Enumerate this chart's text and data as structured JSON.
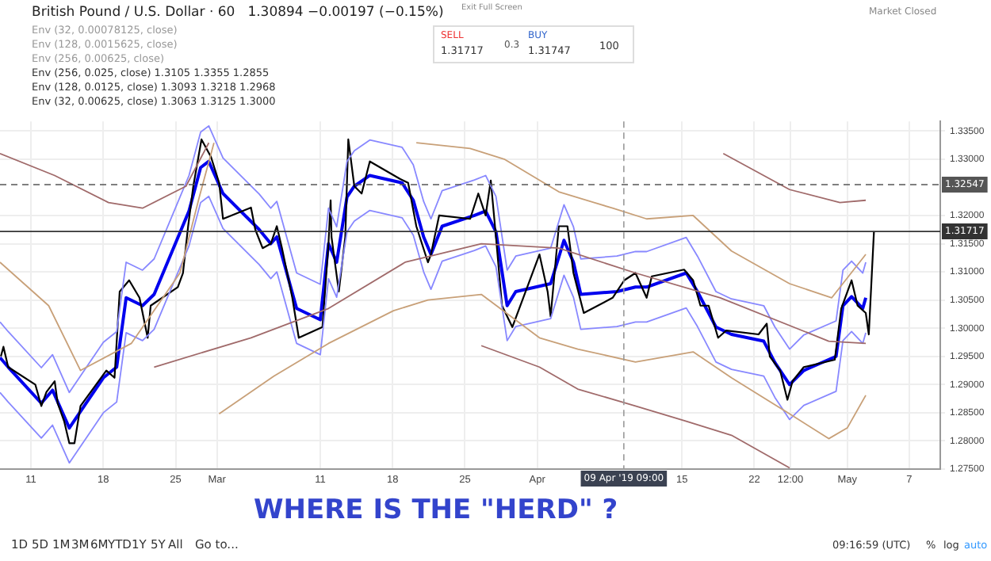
{
  "chart_data": {
    "type": "line",
    "title": "British Pound / U.S. Dollar · 60",
    "subtitle": "1.30894 −0.00197 (−0.15%)",
    "xlim": [
      "2019-02-08T00:00",
      "2019-05-10T00:00"
    ],
    "ylim": [
      1.275,
      1.3367
    ],
    "xticks": [
      {
        "value": "2019-02-11",
        "label": "11"
      },
      {
        "value": "2019-02-18",
        "label": "18"
      },
      {
        "value": "2019-02-25",
        "label": "25"
      },
      {
        "value": "2019-03-01",
        "label": "Mar"
      },
      {
        "value": "2019-03-11",
        "label": "11"
      },
      {
        "value": "2019-03-18",
        "label": "18"
      },
      {
        "value": "2019-03-25",
        "label": "25"
      },
      {
        "value": "2019-04-01",
        "label": "Apr"
      },
      {
        "value": "2019-04-15",
        "label": "15"
      },
      {
        "value": "2019-04-22",
        "label": "22"
      },
      {
        "value": "2019-04-25T12:00",
        "label": "12:00"
      },
      {
        "value": "2019-05-01",
        "label": "May"
      },
      {
        "value": "2019-05-07",
        "label": "7"
      }
    ],
    "yticks": [
      {
        "value": 1.275,
        "label": "1.27500"
      },
      {
        "value": 1.28,
        "label": "1.28000"
      },
      {
        "value": 1.285,
        "label": "1.28500"
      },
      {
        "value": 1.29,
        "label": "1.29000"
      },
      {
        "value": 1.295,
        "label": "1.29500"
      },
      {
        "value": 1.3,
        "label": "1.30000"
      },
      {
        "value": 1.305,
        "label": "1.30500"
      },
      {
        "value": 1.31,
        "label": "1.31000"
      },
      {
        "value": 1.315,
        "label": "1.31500"
      },
      {
        "value": 1.32,
        "label": "1.32000"
      },
      {
        "value": 1.33,
        "label": "1.33000"
      },
      {
        "value": 1.335,
        "label": "1.33500"
      }
    ],
    "grid": true,
    "legend": false,
    "marker": "none",
    "ref_lines": [
      {
        "axis": "y",
        "value": 1.32547,
        "label": "1.32547",
        "color": "#555555",
        "line_style": "dashed"
      },
      {
        "axis": "y",
        "value": 1.31717,
        "label": "1.31717",
        "color": "#333333",
        "line_style": "solid"
      },
      {
        "axis": "x",
        "value": "2019-04-09T09:00",
        "label": "09 Apr '19 09:00",
        "color": "#999999",
        "line_style": "dashed"
      }
    ],
    "series": [
      {
        "color": "#c8a078",
        "x": [
          "2019-02-08T00:00",
          "2019-02-12T17:00",
          "2019-02-15T19:00",
          "2019-02-20T17:00",
          "2019-02-25T10:00",
          "2019-02-27T07:00",
          "2019-02-28T17:00",
          "2019-03-07T00:00",
          "2019-03-20T07:00",
          "2019-03-25T12:00",
          "2019-03-28T19:00",
          "2019-04-03T02:00",
          "2019-04-08T07:00",
          "2019-04-11T14:00",
          "2019-04-16T02:00",
          "2019-04-19T19:00",
          "2019-04-25T10:00",
          "2019-04-29T12:00",
          "2019-05-02T19:00"
        ],
        "values": [
          1.3117,
          1.304,
          1.2925,
          1.2973,
          1.3098,
          1.3233,
          1.3329,
          null,
          1.3329,
          1.3319,
          1.33,
          1.3242,
          1.3213,
          1.3194,
          1.32,
          1.3137,
          1.3079,
          1.3054,
          1.3131
        ]
      },
      {
        "color": "#c8a078",
        "x": [
          "2019-03-01T05:00",
          "2019-03-06T12:00",
          "2019-03-11T19:00",
          "2019-03-18T02:00",
          "2019-03-21T10:00",
          "2019-03-26T14:00",
          "2019-04-01T05:00",
          "2019-04-04T22:00",
          "2019-04-10T12:00",
          "2019-04-16T02:00",
          "2019-04-19T19:00",
          "2019-04-25T10:00",
          "2019-04-29T05:00",
          "2019-05-01T00:00",
          "2019-05-02T19:00"
        ],
        "values": [
          1.2848,
          1.2915,
          1.2973,
          1.3031,
          1.305,
          1.306,
          1.2983,
          1.2963,
          1.294,
          1.2958,
          1.2912,
          1.2848,
          1.2804,
          1.2823,
          1.2881
        ]
      },
      {
        "color": "#a06a6a",
        "x": [
          "2019-02-08T00:00",
          "2019-02-13T07:00",
          "2019-02-18T12:00",
          "2019-02-21T19:00",
          "2019-02-26T00:00",
          "2019-02-28T05:00",
          "2019-03-11T00:00",
          "2019-04-19T00:00",
          "2019-04-25T10:00",
          "2019-04-30T07:00",
          "2019-05-02T19:00"
        ],
        "values": [
          1.331,
          1.3271,
          1.3223,
          1.3213,
          1.3252,
          1.3329,
          null,
          1.331,
          1.3246,
          1.3223,
          1.3227
        ]
      },
      {
        "color": "#a06a6a",
        "x": [
          "2019-02-22T22:00",
          "2019-03-04T07:00",
          "2019-03-11T19:00",
          "2019-03-19T05:00",
          "2019-03-26T14:00",
          "2019-04-03T02:00",
          "2019-04-10T12:00",
          "2019-04-18T17:00",
          "2019-04-29T05:00",
          "2019-05-02T19:00"
        ],
        "values": [
          1.2931,
          1.2983,
          1.3035,
          1.3117,
          1.315,
          1.3142,
          1.3098,
          1.3054,
          1.2977,
          1.2973
        ]
      },
      {
        "color": "#a06a6a",
        "x": [
          "2019-03-26T14:00",
          "2019-04-01T05:00",
          "2019-04-04T22:00",
          "2019-04-10T12:00",
          "2019-04-15T10:00",
          "2019-04-19T19:00",
          "2019-04-25T10:00"
        ],
        "values": [
          1.2969,
          1.2931,
          1.2892,
          1.2862,
          1.2835,
          1.281,
          1.2752
        ]
      },
      {
        "color": "#8888ff",
        "x": [
          "2019-02-08T00:00",
          "2019-02-08T19:00",
          "2019-02-12T00:00",
          "2019-02-13T02:00",
          "2019-02-14T17:00",
          "2019-02-18T00:00",
          "2019-02-19T07:00",
          "2019-02-20T05:00",
          "2019-02-21T19:00",
          "2019-02-22T22:00",
          "2019-02-26T07:00",
          "2019-02-27T10:00",
          "2019-02-28T05:00",
          "2019-03-01T14:00",
          "2019-03-05T02:00",
          "2019-03-06T05:00",
          "2019-03-06T19:00",
          "2019-03-08T17:00",
          "2019-03-11T00:00",
          "2019-03-11T19:00",
          "2019-03-12T14:00",
          "2019-03-13T14:00",
          "2019-03-14T07:00",
          "2019-03-15T19:00",
          "2019-03-18T22:00",
          "2019-03-20T00:00",
          "2019-03-21T00:00",
          "2019-03-21T17:00",
          "2019-03-22T19:00",
          "2019-03-25T22:00",
          "2019-03-27T00:00",
          "2019-03-28T00:00",
          "2019-03-29T02:00",
          "2019-03-29T22:00",
          "2019-04-02T07:00",
          "2019-04-03T14:00",
          "2019-04-04T12:00",
          "2019-04-05T05:00",
          "2019-04-08T17:00",
          "2019-04-10T12:00",
          "2019-04-11T14:00",
          "2019-04-15T10:00",
          "2019-04-16T12:00",
          "2019-04-18T07:00",
          "2019-04-19T19:00",
          "2019-04-22T22:00",
          "2019-04-24T00:00",
          "2019-04-25T10:00",
          "2019-04-26T19:00",
          "2019-04-29T22:00",
          "2019-04-30T14:00",
          "2019-05-01T10:00",
          "2019-05-02T12:00",
          "2019-05-02T19:00"
        ],
        "values": [
          1.3011,
          1.2994,
          1.293,
          1.2953,
          1.2886,
          1.2975,
          1.2994,
          1.3117,
          1.3103,
          1.3123,
          1.3271,
          1.3348,
          1.3359,
          1.3302,
          1.3238,
          1.3213,
          1.3225,
          1.3098,
          1.3078,
          1.3213,
          1.318,
          1.3296,
          1.3315,
          1.3334,
          1.3321,
          1.329,
          1.3225,
          1.3194,
          1.3244,
          1.3263,
          1.3271,
          1.3234,
          1.3103,
          1.3128,
          1.3142,
          1.3219,
          1.318,
          1.3123,
          1.3128,
          1.3136,
          1.3136,
          1.3161,
          1.3128,
          1.3065,
          1.3052,
          1.304,
          1.3002,
          1.2963,
          1.2988,
          1.3013,
          1.3103,
          1.3119,
          1.3098,
          1.3117
        ]
      },
      {
        "color": "#8888ff",
        "x": [
          "2019-02-08T00:00",
          "2019-02-08T19:00",
          "2019-02-12T00:00",
          "2019-02-13T02:00",
          "2019-02-14T17:00",
          "2019-02-18T00:00",
          "2019-02-19T07:00",
          "2019-02-20T05:00",
          "2019-02-21T19:00",
          "2019-02-22T22:00",
          "2019-02-26T07:00",
          "2019-02-27T10:00",
          "2019-02-28T05:00",
          "2019-03-01T14:00",
          "2019-03-05T02:00",
          "2019-03-06T05:00",
          "2019-03-06T19:00",
          "2019-03-08T17:00",
          "2019-03-11T00:00",
          "2019-03-11T19:00",
          "2019-03-12T14:00",
          "2019-03-13T14:00",
          "2019-03-14T07:00",
          "2019-03-15T19:00",
          "2019-03-18T22:00",
          "2019-03-20T00:00",
          "2019-03-21T00:00",
          "2019-03-21T17:00",
          "2019-03-22T19:00",
          "2019-03-25T22:00",
          "2019-03-27T00:00",
          "2019-03-28T00:00",
          "2019-03-29T02:00",
          "2019-03-29T22:00",
          "2019-04-02T07:00",
          "2019-04-03T14:00",
          "2019-04-04T12:00",
          "2019-04-05T05:00",
          "2019-04-08T17:00",
          "2019-04-10T12:00",
          "2019-04-11T14:00",
          "2019-04-15T10:00",
          "2019-04-16T12:00",
          "2019-04-18T07:00",
          "2019-04-19T19:00",
          "2019-04-22T22:00",
          "2019-04-24T00:00",
          "2019-04-25T10:00",
          "2019-04-26T19:00",
          "2019-04-29T22:00",
          "2019-04-30T14:00",
          "2019-05-01T10:00",
          "2019-05-02T12:00",
          "2019-05-02T19:00"
        ],
        "values": [
          1.2886,
          1.2869,
          1.2805,
          1.2828,
          1.2761,
          1.285,
          1.2869,
          1.2992,
          1.2978,
          1.2998,
          1.3146,
          1.3223,
          1.3234,
          1.3177,
          1.3113,
          1.3088,
          1.31,
          1.2973,
          1.2953,
          1.3088,
          1.3055,
          1.3171,
          1.319,
          1.3209,
          1.3196,
          1.3165,
          1.31,
          1.3069,
          1.3119,
          1.3138,
          1.3146,
          1.3109,
          1.2978,
          1.3003,
          1.3017,
          1.3094,
          1.3055,
          1.2998,
          1.3003,
          1.3011,
          1.3011,
          1.3036,
          1.3003,
          1.294,
          1.2927,
          1.2915,
          1.2877,
          1.2838,
          1.2863,
          1.2888,
          1.2978,
          1.2994,
          1.2973,
          1.2992
        ]
      },
      {
        "color": "#000000",
        "x": [
          "2019-02-08T02:00",
          "2019-02-08T08:00",
          "2019-02-08T19:00",
          "2019-02-11T10:00",
          "2019-02-12T00:00",
          "2019-02-12T12:00",
          "2019-02-13T07:00",
          "2019-02-13T14:00",
          "2019-02-14T05:00",
          "2019-02-14T17:00",
          "2019-02-15T05:00",
          "2019-02-15T19:00",
          "2019-02-18T07:00",
          "2019-02-19T02:00",
          "2019-02-19T14:00",
          "2019-02-20T12:00",
          "2019-02-21T12:00",
          "2019-02-22T07:00",
          "2019-02-22T14:00",
          "2019-02-25T05:00",
          "2019-02-25T17:00",
          "2019-02-26T05:00",
          "2019-02-26T17:00",
          "2019-02-27T12:00",
          "2019-02-28T10:00",
          "2019-03-01T05:00",
          "2019-03-01T14:00",
          "2019-03-04T07:00",
          "2019-03-04T17:00",
          "2019-03-05T10:00",
          "2019-03-06T05:00",
          "2019-03-06T19:00",
          "2019-03-07T07:00",
          "2019-03-07T19:00",
          "2019-03-08T07:00",
          "2019-03-08T22:00",
          "2019-03-11T05:00",
          "2019-03-11T19:00",
          "2019-03-12T00:00",
          "2019-03-12T02:00",
          "2019-03-12T19:00",
          "2019-03-13T10:00",
          "2019-03-13T17:00",
          "2019-03-14T07:00",
          "2019-03-15T00:00",
          "2019-03-15T19:00",
          "2019-03-18T17:00",
          "2019-03-19T12:00",
          "2019-03-20T07:00",
          "2019-03-21T10:00",
          "2019-03-21T17:00",
          "2019-03-22T12:00",
          "2019-03-25T12:00",
          "2019-03-26T07:00",
          "2019-03-27T00:00",
          "2019-03-27T12:00",
          "2019-03-28T00:00",
          "2019-03-28T14:00",
          "2019-03-29T14:00",
          "2019-04-01T05:00",
          "2019-04-02T00:00",
          "2019-04-02T07:00",
          "2019-04-03T02:00",
          "2019-04-03T22:00",
          "2019-04-04T12:00",
          "2019-04-05T12:00",
          "2019-04-08T07:00",
          "2019-04-09T10:00",
          "2019-04-10T12:00",
          "2019-04-11T14:00",
          "2019-04-12T02:00",
          "2019-04-15T05:00",
          "2019-04-16T02:00",
          "2019-04-16T19:00",
          "2019-04-17T14:00",
          "2019-04-18T12:00",
          "2019-04-19T07:00",
          "2019-04-22T10:00",
          "2019-04-23T05:00",
          "2019-04-23T12:00",
          "2019-04-24T12:00",
          "2019-04-25T05:00",
          "2019-04-25T17:00",
          "2019-04-26T19:00",
          "2019-04-29T19:00",
          "2019-04-30T10:00",
          "2019-05-01T10:00",
          "2019-05-02T00:00",
          "2019-05-02T19:00",
          "2019-05-03T02:00",
          "2019-05-03T14:00"
        ],
        "values": [
          1.295,
          1.2967,
          1.2931,
          1.29,
          1.2862,
          1.2887,
          1.2906,
          1.2867,
          1.2835,
          1.2796,
          1.2796,
          1.2862,
          1.2925,
          1.2912,
          1.3065,
          1.3085,
          1.3054,
          1.2983,
          1.304,
          1.3073,
          1.3098,
          1.3181,
          1.3252,
          1.3335,
          1.3304,
          1.3258,
          1.3194,
          1.3214,
          1.3175,
          1.3142,
          1.315,
          1.3181,
          1.3142,
          1.3098,
          1.3054,
          1.2983,
          1.3002,
          1.315,
          1.3227,
          1.3162,
          1.3065,
          1.3162,
          1.3335,
          1.3252,
          1.3239,
          1.3296,
          1.3265,
          1.3258,
          1.3181,
          1.3117,
          1.3131,
          1.32,
          1.3194,
          1.3239,
          1.32,
          1.3262,
          1.3162,
          1.304,
          1.3002,
          1.3131,
          1.3065,
          1.3021,
          1.3181,
          1.3181,
          1.3098,
          1.3027,
          1.3054,
          1.3085,
          1.3098,
          1.3054,
          1.3092,
          1.3104,
          1.3085,
          1.304,
          1.304,
          1.2983,
          1.2996,
          1.2989,
          1.3008,
          1.295,
          1.2925,
          1.2873,
          1.2906,
          1.2931,
          1.2944,
          1.3035,
          1.3085,
          1.304,
          1.3027,
          1.2989,
          1.3172
        ]
      },
      {
        "color": "#0000ee",
        "x": [
          "2019-02-08T00:00",
          "2019-02-08T19:00",
          "2019-02-12T00:00",
          "2019-02-13T02:00",
          "2019-02-14T17:00",
          "2019-02-18T00:00",
          "2019-02-19T07:00",
          "2019-02-20T05:00",
          "2019-02-21T19:00",
          "2019-02-22T22:00",
          "2019-02-26T07:00",
          "2019-02-27T10:00",
          "2019-02-28T05:00",
          "2019-03-01T14:00",
          "2019-03-05T02:00",
          "2019-03-06T05:00",
          "2019-03-06T19:00",
          "2019-03-08T17:00",
          "2019-03-11T00:00",
          "2019-03-11T19:00",
          "2019-03-12T14:00",
          "2019-03-13T14:00",
          "2019-03-14T07:00",
          "2019-03-15T19:00",
          "2019-03-18T22:00",
          "2019-03-20T00:00",
          "2019-03-21T00:00",
          "2019-03-21T17:00",
          "2019-03-22T19:00",
          "2019-03-25T22:00",
          "2019-03-27T00:00",
          "2019-03-28T00:00",
          "2019-03-29T02:00",
          "2019-03-29T22:00",
          "2019-04-02T07:00",
          "2019-04-03T14:00",
          "2019-04-04T12:00",
          "2019-04-05T05:00",
          "2019-04-08T17:00",
          "2019-04-10T12:00",
          "2019-04-11T14:00",
          "2019-04-15T10:00",
          "2019-04-16T12:00",
          "2019-04-18T07:00",
          "2019-04-19T19:00",
          "2019-04-22T22:00",
          "2019-04-24T00:00",
          "2019-04-25T10:00",
          "2019-04-26T19:00",
          "2019-04-29T22:00",
          "2019-04-30T14:00",
          "2019-05-01T10:00",
          "2019-05-02T12:00",
          "2019-05-02T19:00"
        ],
        "values": [
          1.2948,
          1.2931,
          1.2867,
          1.289,
          1.2823,
          1.2912,
          1.2931,
          1.3054,
          1.304,
          1.306,
          1.3208,
          1.3285,
          1.3296,
          1.3239,
          1.3175,
          1.315,
          1.3162,
          1.3035,
          1.3015,
          1.315,
          1.3117,
          1.3233,
          1.3252,
          1.3271,
          1.3258,
          1.3227,
          1.3162,
          1.3131,
          1.3181,
          1.32,
          1.3208,
          1.3171,
          1.304,
          1.3065,
          1.3079,
          1.3156,
          1.3117,
          1.306,
          1.3065,
          1.3073,
          1.3073,
          1.3098,
          1.3065,
          1.3002,
          1.2989,
          1.2977,
          1.2939,
          1.29,
          1.2925,
          1.295,
          1.304,
          1.3056,
          1.3035,
          1.3054
        ]
      }
    ],
    "annotations": [
      "Env (32, 0.00078125, close)",
      "Env (128, 0.0015625, close)",
      "Env (256, 0.00625, close)",
      "Env (256, 0.025, close) 1.3105 1.3355 1.2855",
      "Env (128, 0.0125, close) 1.3093 1.3218 1.2968",
      "Env (32, 0.00625, close) 1.3063 1.3125 1.3000",
      "SELL",
      "1.31717",
      "0.3",
      "BUY",
      "1.31747",
      "100",
      "Market Closed",
      "Exit Full Screen",
      "1D",
      "5D",
      "1M",
      "3M",
      "6M",
      "YTD",
      "1Y",
      "5Y",
      "All",
      "Go to...",
      "09:16:59 (UTC)",
      "%",
      "log",
      "auto",
      "WHERE IS THE \"HERD\" ?"
    ]
  }
}
